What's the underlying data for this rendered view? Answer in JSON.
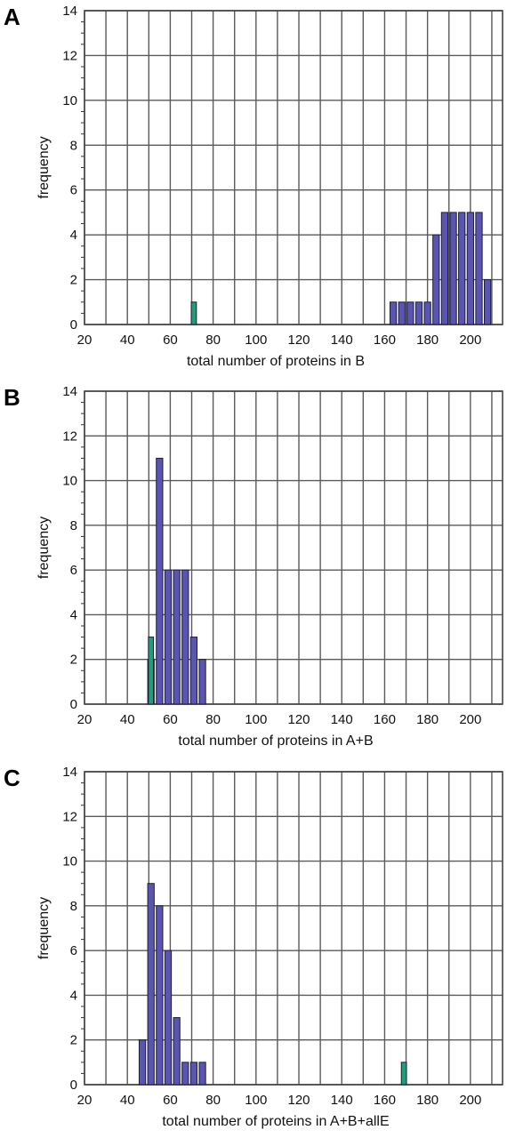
{
  "colors": {
    "primary_bar": "#5a55b0",
    "highlight_bar": "#1f9e78",
    "grid": "#5a5a5a"
  },
  "chart_data": [
    {
      "panel": "A",
      "type": "bar",
      "xlabel": "total number of proteins in B",
      "ylabel": "frequency",
      "xlim": [
        20,
        215
      ],
      "ylim": [
        0,
        14
      ],
      "x_ticks": [
        20,
        40,
        60,
        80,
        100,
        120,
        140,
        160,
        180,
        200
      ],
      "y_ticks": [
        0,
        2,
        4,
        6,
        8,
        10,
        12,
        14
      ],
      "grid": true,
      "bin_width": 4,
      "series": [
        {
          "role": "primary",
          "x": [
            164,
            168,
            172,
            176,
            180,
            184,
            188,
            192,
            196,
            200,
            204,
            208
          ],
          "values": [
            1,
            1,
            1,
            1,
            1,
            4,
            5,
            5,
            5,
            5,
            5,
            2
          ]
        },
        {
          "role": "highlight",
          "x": [
            71
          ],
          "values": [
            1
          ]
        }
      ]
    },
    {
      "panel": "B",
      "type": "bar",
      "xlabel": "total number of proteins in A+B",
      "ylabel": "frequency",
      "xlim": [
        20,
        215
      ],
      "ylim": [
        0,
        14
      ],
      "x_ticks": [
        20,
        40,
        60,
        80,
        100,
        120,
        140,
        160,
        180,
        200
      ],
      "y_ticks": [
        0,
        2,
        4,
        6,
        8,
        10,
        12,
        14
      ],
      "grid": true,
      "bin_width": 4,
      "series": [
        {
          "role": "primary",
          "x": [
            51,
            55,
            59,
            63,
            67,
            71,
            75
          ],
          "values": [
            2,
            11,
            6,
            6,
            6,
            3,
            2
          ]
        },
        {
          "role": "highlight",
          "x": [
            51
          ],
          "values": [
            3
          ]
        }
      ]
    },
    {
      "panel": "C",
      "type": "bar",
      "xlabel": "total number of proteins in A+B+allE",
      "ylabel": "frequency",
      "xlim": [
        20,
        215
      ],
      "ylim": [
        0,
        14
      ],
      "x_ticks": [
        20,
        40,
        60,
        80,
        100,
        120,
        140,
        160,
        180,
        200
      ],
      "y_ticks": [
        0,
        2,
        4,
        6,
        8,
        10,
        12,
        14
      ],
      "grid": true,
      "bin_width": 4,
      "series": [
        {
          "role": "primary",
          "x": [
            47,
            51,
            55,
            59,
            63,
            67,
            71,
            75
          ],
          "values": [
            2,
            9,
            8,
            6,
            3,
            1,
            1,
            1
          ]
        },
        {
          "role": "highlight",
          "x": [
            169
          ],
          "values": [
            1
          ]
        }
      ]
    }
  ]
}
